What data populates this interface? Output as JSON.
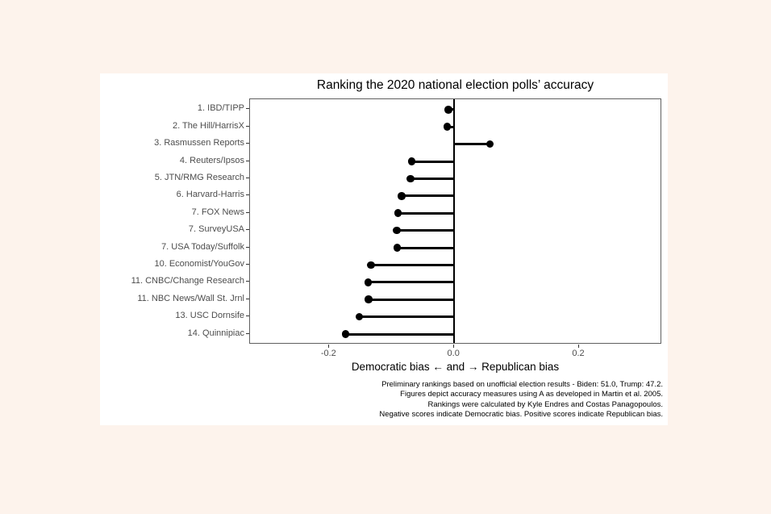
{
  "page": {
    "background_color": "#fdf3ec",
    "figure_background_color": "#ffffff"
  },
  "chart_data": {
    "type": "lollipop",
    "orientation": "horizontal",
    "title": "Ranking the 2020 national election polls’ accuracy",
    "xlabel": "Democratic bias ← and → Republican bias",
    "xlim": [
      -0.327,
      0.333
    ],
    "xticks": [
      -0.2,
      0.0,
      0.2
    ],
    "xtick_labels": [
      "-0.2",
      "0.0",
      "0.2"
    ],
    "baseline": 0,
    "grid": "off",
    "legend": "none",
    "categories": [
      "1. IBD/TIPP",
      "2. The Hill/HarrisX",
      "3. Rasmussen Reports",
      "4. Reuters/Ipsos",
      "5. JTN/RMG Research",
      "6. Harvard-Harris",
      "7. FOX News",
      "7. SurveyUSA",
      "7. USA Today/Suffolk",
      "10. Economist/YouGov",
      "11. CNBC/Change Research",
      "11. NBC News/Wall St. Jrnl",
      "13. USC Dornsife",
      "14. Quinnipiac"
    ],
    "values": [
      -0.009,
      -0.011,
      0.057,
      -0.068,
      -0.07,
      -0.084,
      -0.09,
      -0.092,
      -0.091,
      -0.133,
      -0.138,
      -0.137,
      -0.152,
      -0.174
    ],
    "caption_lines": [
      "Preliminary rankings based on unofficial election results - Biden: 51.0, Trump: 47.2.",
      "Figures depict accuracy measures using A as developed in Martin et al. 2005.",
      "Rankings were calculated by Kyle Endres and Costas Panagopoulos.",
      "Negative scores indicate Democratic bias. Positive scores indicate Republican bias."
    ],
    "colors": {
      "point": "#000000",
      "stem": "#000000",
      "zero_line": "#000000",
      "panel_border": "#606060",
      "axis_text": "#4d4d4d",
      "title_text": "#000000"
    }
  }
}
